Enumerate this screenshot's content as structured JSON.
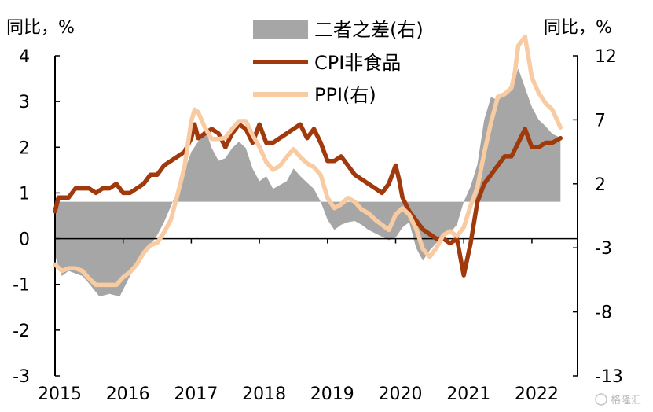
{
  "chart_data": {
    "type": "line",
    "left_axis_label": "同比，%",
    "right_axis_label": "同比，%",
    "ylim_left": [
      -3,
      4
    ],
    "ylim_right": [
      -13,
      12
    ],
    "left_ticks": [
      "4",
      "3",
      "2",
      "1",
      "0",
      "-1",
      "-2",
      "-3"
    ],
    "right_ticks": [
      "12",
      "7",
      "2",
      "-3",
      "-8",
      "-13"
    ],
    "x_ticks": [
      "2015",
      "2016",
      "2017",
      "2018",
      "2019",
      "2020",
      "2021",
      "2022"
    ],
    "x_range": [
      2015.0,
      2022.67
    ],
    "legend": [
      "二者之差(右)",
      "CPI非食品",
      "PPI(右)"
    ],
    "colors": {
      "diff": "#a6a6a6",
      "cpi": "#a0390c",
      "ppi": "#f8cba2"
    },
    "series": [
      {
        "name": "二者之差(右)",
        "axis": "right",
        "kind": "area",
        "baseline": 0.6,
        "x": [
          2015.0,
          2015.1,
          2015.2,
          2015.4,
          2015.5,
          2015.65,
          2015.8,
          2015.95,
          2016.1,
          2016.25,
          2016.4,
          2016.5,
          2016.6,
          2016.8,
          2017.0,
          2017.1,
          2017.2,
          2017.3,
          2017.4,
          2017.5,
          2017.6,
          2017.7,
          2017.8,
          2017.9,
          2018.0,
          2018.1,
          2018.2,
          2018.3,
          2018.4,
          2018.5,
          2018.6,
          2018.7,
          2018.8,
          2018.9,
          2019.0,
          2019.1,
          2019.2,
          2019.3,
          2019.4,
          2019.5,
          2019.6,
          2019.75,
          2019.9,
          2020.0,
          2020.1,
          2020.2,
          2020.3,
          2020.4,
          2020.5,
          2020.6,
          2020.7,
          2020.8,
          2020.9,
          2021.0,
          2021.1,
          2021.2,
          2021.3,
          2021.4,
          2021.5,
          2021.6,
          2021.7,
          2021.8,
          2021.9,
          2022.0,
          2022.1,
          2022.2,
          2022.3,
          2022.42
        ],
        "values": [
          -3.6,
          -5.2,
          -4.8,
          -5.2,
          -5.8,
          -6.8,
          -6.6,
          -6.8,
          -5.2,
          -3.8,
          -2.8,
          -2.0,
          -1.0,
          1.5,
          4.5,
          5.3,
          6.4,
          4.8,
          3.8,
          4.0,
          4.8,
          5.3,
          4.8,
          3.2,
          2.2,
          2.6,
          1.6,
          1.9,
          2.2,
          3.2,
          2.6,
          2.1,
          1.6,
          0.6,
          -0.8,
          -1.6,
          -1.2,
          -1.0,
          -0.9,
          -1.2,
          -1.6,
          -2.0,
          -2.4,
          -2.2,
          -1.4,
          -1.0,
          -3.0,
          -4.0,
          -3.2,
          -2.6,
          -2.2,
          -1.8,
          -1.2,
          0.6,
          1.8,
          3.5,
          7.0,
          8.8,
          8.5,
          9.0,
          9.6,
          11.0,
          9.5,
          8.0,
          7.0,
          6.5,
          5.9,
          5.6
        ]
      },
      {
        "name": "CPI非食品",
        "axis": "left",
        "kind": "line",
        "x": [
          2015.0,
          2015.05,
          2015.1,
          2015.2,
          2015.3,
          2015.4,
          2015.5,
          2015.6,
          2015.7,
          2015.8,
          2015.9,
          2016.0,
          2016.1,
          2016.2,
          2016.3,
          2016.4,
          2016.5,
          2016.6,
          2016.7,
          2016.8,
          2016.9,
          2017.0,
          2017.05,
          2017.1,
          2017.2,
          2017.3,
          2017.4,
          2017.5,
          2017.6,
          2017.7,
          2017.8,
          2017.9,
          2018.0,
          2018.1,
          2018.2,
          2018.3,
          2018.4,
          2018.5,
          2018.6,
          2018.7,
          2018.8,
          2018.9,
          2019.0,
          2019.1,
          2019.2,
          2019.3,
          2019.4,
          2019.5,
          2019.6,
          2019.7,
          2019.8,
          2019.9,
          2020.0,
          2020.05,
          2020.1,
          2020.2,
          2020.3,
          2020.4,
          2020.5,
          2020.6,
          2020.7,
          2020.8,
          2020.9,
          2021.0,
          2021.1,
          2021.2,
          2021.3,
          2021.4,
          2021.5,
          2021.6,
          2021.7,
          2021.8,
          2021.9,
          2022.0,
          2022.1,
          2022.2,
          2022.3,
          2022.42
        ],
        "values": [
          0.6,
          0.9,
          0.9,
          0.9,
          1.1,
          1.1,
          1.1,
          1.0,
          1.1,
          1.1,
          1.2,
          1.0,
          1.0,
          1.1,
          1.2,
          1.4,
          1.4,
          1.6,
          1.7,
          1.8,
          1.9,
          2.2,
          2.5,
          2.2,
          2.3,
          2.4,
          2.3,
          2.0,
          2.3,
          2.5,
          2.4,
          2.1,
          2.5,
          2.1,
          2.1,
          2.2,
          2.3,
          2.4,
          2.5,
          2.2,
          2.4,
          2.1,
          1.7,
          1.7,
          1.8,
          1.6,
          1.4,
          1.3,
          1.2,
          1.1,
          1.0,
          1.2,
          1.6,
          1.3,
          0.9,
          0.6,
          0.4,
          0.2,
          0.1,
          0.0,
          0.0,
          -0.1,
          0.0,
          -0.8,
          -0.1,
          0.8,
          1.2,
          1.4,
          1.6,
          1.8,
          1.8,
          2.1,
          2.4,
          2.0,
          2.0,
          2.1,
          2.1,
          2.2
        ]
      },
      {
        "name": "PPI(右)",
        "axis": "right",
        "kind": "line",
        "x": [
          2015.0,
          2015.1,
          2015.2,
          2015.3,
          2015.4,
          2015.5,
          2015.6,
          2015.7,
          2015.8,
          2015.9,
          2016.0,
          2016.1,
          2016.2,
          2016.3,
          2016.4,
          2016.5,
          2016.6,
          2016.7,
          2016.8,
          2016.9,
          2017.0,
          2017.05,
          2017.1,
          2017.2,
          2017.3,
          2017.4,
          2017.5,
          2017.6,
          2017.7,
          2017.8,
          2017.9,
          2018.0,
          2018.1,
          2018.2,
          2018.3,
          2018.4,
          2018.5,
          2018.6,
          2018.7,
          2018.8,
          2018.9,
          2019.0,
          2019.1,
          2019.2,
          2019.3,
          2019.4,
          2019.5,
          2019.6,
          2019.7,
          2019.8,
          2019.9,
          2020.0,
          2020.1,
          2020.2,
          2020.3,
          2020.4,
          2020.5,
          2020.6,
          2020.7,
          2020.8,
          2020.9,
          2021.0,
          2021.1,
          2021.2,
          2021.3,
          2021.4,
          2021.5,
          2021.6,
          2021.7,
          2021.75,
          2021.8,
          2021.9,
          2022.0,
          2022.1,
          2022.2,
          2022.3,
          2022.42
        ],
        "values": [
          -4.3,
          -4.8,
          -4.6,
          -4.6,
          -4.8,
          -5.4,
          -5.9,
          -5.9,
          -5.9,
          -5.9,
          -5.3,
          -4.9,
          -4.3,
          -3.4,
          -2.8,
          -2.6,
          -1.8,
          -0.8,
          1.2,
          3.3,
          6.9,
          7.8,
          7.6,
          6.4,
          5.5,
          5.5,
          5.6,
          6.3,
          6.9,
          6.9,
          5.8,
          4.9,
          3.7,
          3.1,
          3.4,
          4.1,
          4.7,
          4.1,
          3.6,
          3.3,
          2.7,
          0.9,
          0.1,
          0.4,
          0.9,
          0.6,
          0.0,
          -0.3,
          -0.8,
          -1.2,
          -1.6,
          -0.4,
          0.1,
          -0.4,
          -1.5,
          -3.1,
          -3.7,
          -3.0,
          -2.0,
          -1.7,
          -2.1,
          -1.4,
          0.3,
          1.7,
          4.4,
          6.8,
          8.8,
          9.0,
          9.5,
          10.7,
          12.8,
          13.5,
          10.3,
          9.1,
          8.3,
          7.8,
          6.4
        ]
      }
    ]
  },
  "watermark": "格隆汇"
}
